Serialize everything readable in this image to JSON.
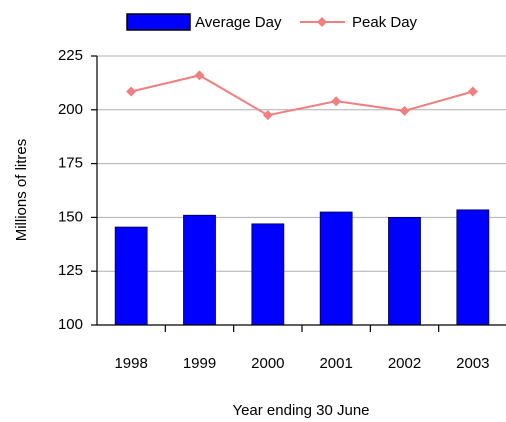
{
  "chart_data": {
    "type": "bar",
    "x_label": "Year ending 30 June",
    "y_label": "Millions of litres",
    "categories": [
      "1998",
      "1999",
      "2000",
      "2001",
      "2002",
      "2003"
    ],
    "series": [
      {
        "name": "Average Day",
        "type": "bar",
        "color": "#0000ff",
        "values": [
          145.5,
          151,
          147,
          152.5,
          150,
          153.5
        ]
      },
      {
        "name": "Peak Day",
        "type": "line",
        "color": "#f08080",
        "values": [
          208.5,
          216,
          197.5,
          204,
          199.5,
          208.5
        ]
      }
    ],
    "ylim": [
      100,
      225
    ],
    "yticks": [
      100,
      125,
      150,
      175,
      200,
      225
    ],
    "grid": true
  }
}
